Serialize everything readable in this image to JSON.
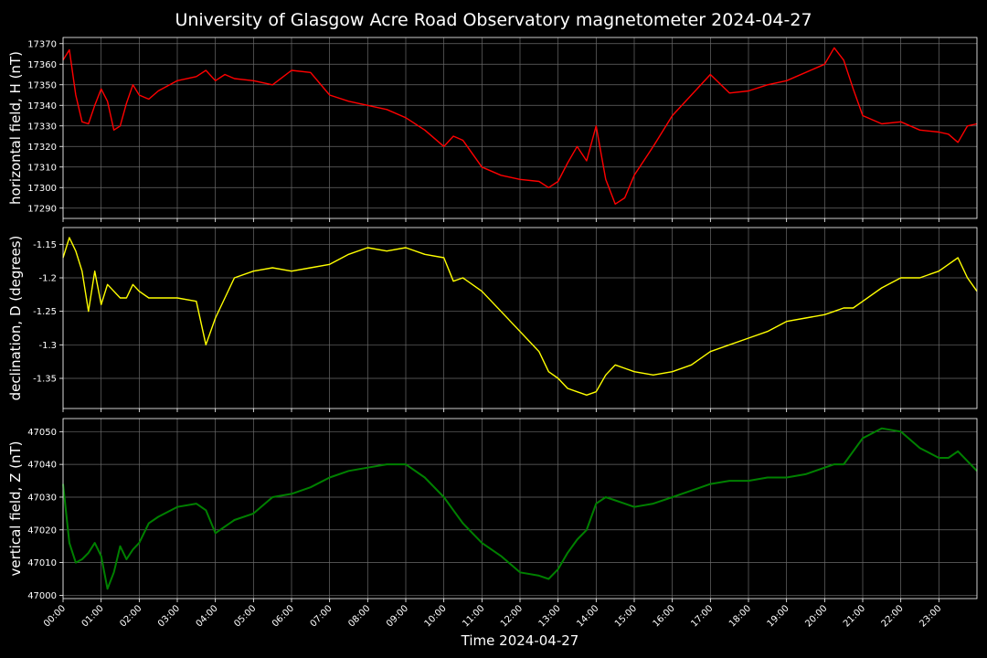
{
  "chart_data": {
    "type": "line",
    "title": "University of Glasgow Acre Road Observatory magnetometer 2024-04-27",
    "xlabel": "Time 2024-04-27",
    "xlim": [
      "00:00",
      "24:00"
    ],
    "x_tick_labels": [
      "00:00",
      "01:00",
      "02:00",
      "03:00",
      "04:00",
      "05:00",
      "06:00",
      "07:00",
      "08:00",
      "09:00",
      "10:00",
      "11:00",
      "12:00",
      "13:00",
      "14:00",
      "15:00",
      "16:00",
      "17:00",
      "18:00",
      "19:00",
      "20:00",
      "21:00",
      "22:00",
      "23:00"
    ],
    "grid": true,
    "legend": "none",
    "x": [
      "00:00",
      "00:10",
      "00:20",
      "00:30",
      "00:40",
      "00:50",
      "01:00",
      "01:10",
      "01:20",
      "01:30",
      "01:40",
      "01:50",
      "02:00",
      "02:15",
      "02:30",
      "03:00",
      "03:30",
      "03:45",
      "04:00",
      "04:15",
      "04:30",
      "05:00",
      "05:30",
      "06:00",
      "06:30",
      "07:00",
      "07:30",
      "08:00",
      "08:30",
      "09:00",
      "09:30",
      "10:00",
      "10:15",
      "10:30",
      "11:00",
      "11:30",
      "12:00",
      "12:30",
      "12:45",
      "13:00",
      "13:15",
      "13:30",
      "13:45",
      "14:00",
      "14:15",
      "14:30",
      "14:45",
      "15:00",
      "15:30",
      "16:00",
      "16:30",
      "17:00",
      "17:30",
      "18:00",
      "18:30",
      "19:00",
      "19:30",
      "20:00",
      "20:15",
      "20:30",
      "20:45",
      "21:00",
      "21:30",
      "22:00",
      "22:30",
      "23:00",
      "23:15",
      "23:30",
      "23:45",
      "24:00"
    ],
    "panels": [
      {
        "ylabel": "horizontal field, H (nT)",
        "ylim": [
          17285,
          17373
        ],
        "yticks": [
          17290,
          17300,
          17310,
          17320,
          17330,
          17340,
          17350,
          17360,
          17370
        ],
        "series": [
          {
            "color": "#ff0000",
            "values": [
              17362,
              17367,
              17345,
              17332,
              17331,
              17340,
              17348,
              17342,
              17328,
              17330,
              17341,
              17350,
              17345,
              17343,
              17347,
              17352,
              17354,
              17357,
              17352,
              17355,
              17353,
              17352,
              17350,
              17357,
              17356,
              17345,
              17342,
              17340,
              17338,
              17334,
              17328,
              17320,
              17325,
              17323,
              17310,
              17306,
              17304,
              17303,
              17300,
              17303,
              17312,
              17320,
              17313,
              17330,
              17304,
              17292,
              17295,
              17306,
              17320,
              17335,
              17345,
              17355,
              17346,
              17347,
              17350,
              17352,
              17356,
              17360,
              17368,
              17362,
              17348,
              17335,
              17331,
              17332,
              17328,
              17327,
              17326,
              17322,
              17330,
              17331
            ]
          }
        ]
      },
      {
        "ylabel": "declination, D (degrees)",
        "ylim": [
          -1.395,
          -1.125
        ],
        "yticks": [
          -1.35,
          -1.3,
          -1.25,
          -1.2,
          -1.15
        ],
        "series": [
          {
            "color": "#ffff00",
            "values": [
              -1.17,
              -1.14,
              -1.16,
              -1.19,
              -1.25,
              -1.19,
              -1.24,
              -1.21,
              -1.22,
              -1.23,
              -1.23,
              -1.21,
              -1.22,
              -1.23,
              -1.23,
              -1.23,
              -1.235,
              -1.3,
              -1.26,
              -1.23,
              -1.2,
              -1.19,
              -1.185,
              -1.19,
              -1.185,
              -1.18,
              -1.165,
              -1.155,
              -1.16,
              -1.155,
              -1.165,
              -1.17,
              -1.205,
              -1.2,
              -1.22,
              -1.25,
              -1.28,
              -1.31,
              -1.34,
              -1.35,
              -1.365,
              -1.37,
              -1.375,
              -1.37,
              -1.345,
              -1.33,
              -1.335,
              -1.34,
              -1.345,
              -1.34,
              -1.33,
              -1.31,
              -1.3,
              -1.29,
              -1.28,
              -1.265,
              -1.26,
              -1.255,
              -1.25,
              -1.245,
              -1.245,
              -1.235,
              -1.215,
              -1.2,
              -1.2,
              -1.19,
              -1.18,
              -1.17,
              -1.2,
              -1.22
            ]
          }
        ]
      },
      {
        "ylabel": "vertical field, Z (nT)",
        "ylim": [
          46999,
          47054
        ],
        "yticks": [
          47000,
          47010,
          47020,
          47030,
          47040,
          47050
        ],
        "series": [
          {
            "color": "#008000",
            "values": [
              47034,
              47016,
              47010,
              47011,
              47013,
              47016,
              47012,
              47002,
              47007,
              47015,
              47011,
              47014,
              47016,
              47022,
              47024,
              47027,
              47028,
              47026,
              47019,
              47021,
              47023,
              47025,
              47030,
              47031,
              47033,
              47036,
              47038,
              47039,
              47040,
              47040,
              47036,
              47030,
              47026,
              47022,
              47016,
              47012,
              47007,
              47006,
              47005,
              47008,
              47013,
              47017,
              47020,
              47028,
              47030,
              47029,
              47028,
              47027,
              47028,
              47030,
              47032,
              47034,
              47035,
              47035,
              47036,
              47036,
              47037,
              47039,
              47040,
              47040,
              47044,
              47048,
              47051,
              47050,
              47045,
              47042,
              47042,
              47044,
              47041,
              47038
            ]
          }
        ]
      }
    ]
  }
}
